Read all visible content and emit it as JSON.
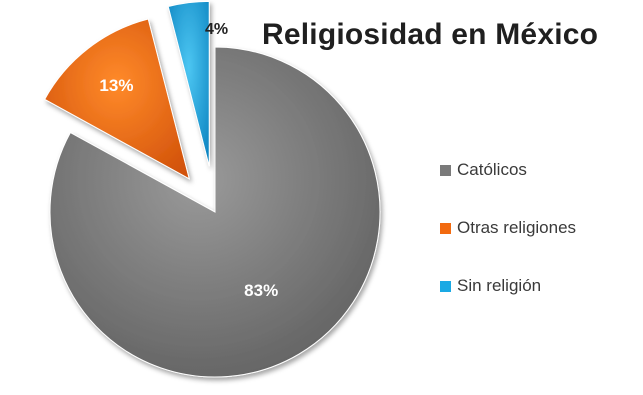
{
  "chart_data": {
    "type": "pie",
    "title": "Religiosidad en México",
    "slices": [
      {
        "name": "Católicos",
        "value": 83,
        "label": "83%",
        "color": "#7a7a7a"
      },
      {
        "name": "Otras religiones",
        "value": 13,
        "label": "13%",
        "color": "#f26a10"
      },
      {
        "name": "Sin religión",
        "value": 4,
        "label": "4%",
        "color": "#1aa9e4"
      }
    ],
    "legend_position": "right",
    "exploded": true
  }
}
